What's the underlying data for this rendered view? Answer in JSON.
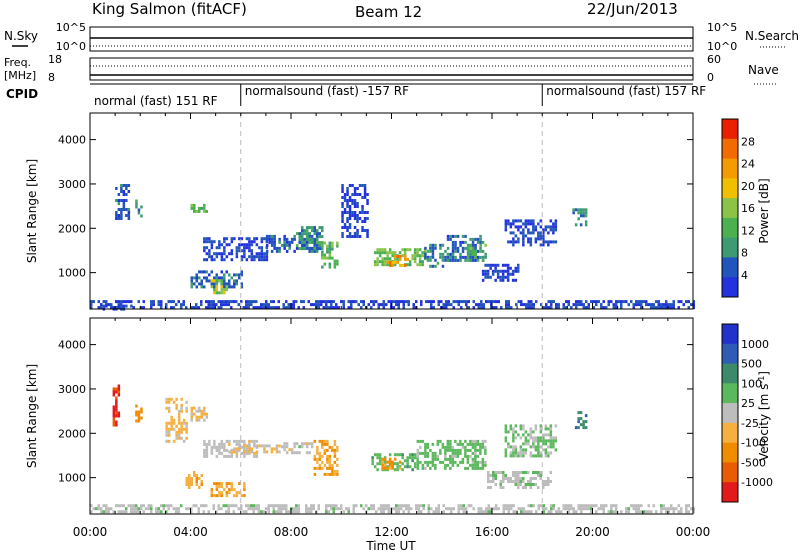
{
  "header": {
    "station": "King Salmon (fitACF)",
    "beam": "Beam 12",
    "date": "22/Jun/2013"
  },
  "noise_panel": {
    "left_label": "N.Sky",
    "right_label": "N.Search",
    "left_ticks": [
      "10^5",
      "10^0"
    ],
    "right_ticks": [
      "10^5",
      "10^0"
    ]
  },
  "freq_panel": {
    "left_label_1": "Freq.",
    "left_label_2": "[MHz]",
    "left_ticks": [
      "18",
      "8"
    ],
    "right_label": "Nave",
    "right_ticks": [
      "60",
      "0"
    ]
  },
  "cpid": {
    "label": "CPID",
    "modes": [
      {
        "name": "normal (fast) 151 RF",
        "start_hour": 0,
        "end_hour": 6
      },
      {
        "name": "normalsound (fast) -157 RF",
        "start_hour": 6,
        "end_hour": 18
      },
      {
        "name": "normalsound (fast) 157 RF",
        "start_hour": 18,
        "end_hour": 24
      }
    ]
  },
  "x_axis": {
    "label": "Time UT",
    "ticks": [
      "00:00",
      "04:00",
      "08:00",
      "12:00",
      "16:00",
      "20:00",
      "00:00"
    ]
  },
  "power_panel": {
    "ylabel": "Slant Range [km]",
    "yticks": [
      "4000",
      "3000",
      "2000",
      "1000"
    ],
    "colorbar_label": "Power [dB]",
    "colorbar_ticks": [
      "28",
      "24",
      "20",
      "16",
      "12",
      "8",
      "4"
    ]
  },
  "velocity_panel": {
    "ylabel": "Slant Range [km]",
    "yticks": [
      "4000",
      "3000",
      "2000",
      "1000"
    ],
    "colorbar_label": "Velocity [m s^-1]",
    "colorbar_ticks": [
      "1000",
      "500",
      "100",
      "25",
      "-25",
      "-100",
      "-500",
      "-1000"
    ]
  },
  "colors": {
    "power_scale": [
      "#2233dd",
      "#2255bb",
      "#3d9b73",
      "#4caf50",
      "#8bc34a",
      "#f0c000",
      "#f59a00",
      "#f26b00",
      "#e82000"
    ],
    "velocity_scale": [
      "#2233cc",
      "#2f5bb5",
      "#3d8a6b",
      "#5cb85c",
      "#bdbdbd",
      "#f5b041",
      "#f08c00",
      "#e85d04",
      "#e31a1c"
    ],
    "guide_line": "#bbbbbb"
  },
  "chart_data": [
    {
      "type": "heatmap",
      "title": "Power",
      "x_unit": "hours UT",
      "y_unit": "km",
      "xlim": [
        0,
        24
      ],
      "ylim": [
        180,
        4600
      ],
      "zlim": [
        2,
        30
      ],
      "colorbar_ticks": [
        4,
        8,
        12,
        16,
        20,
        24,
        28
      ],
      "regions": [
        {
          "x": [
            1.0,
            1.5
          ],
          "y": [
            2200,
            3000
          ],
          "z": 6
        },
        {
          "x": [
            1.8,
            2.0
          ],
          "y": [
            2300,
            2650
          ],
          "z": 10
        },
        {
          "x": [
            4.0,
            4.6
          ],
          "y": [
            2350,
            2550
          ],
          "z": 14
        },
        {
          "x": [
            4.5,
            7.0
          ],
          "y": [
            1300,
            1800
          ],
          "z": 5
        },
        {
          "x": [
            7.0,
            9.0
          ],
          "y": [
            1450,
            1850
          ],
          "z": 6
        },
        {
          "x": [
            8.2,
            9.2
          ],
          "y": [
            1550,
            2050
          ],
          "z": 10
        },
        {
          "x": [
            9.2,
            9.8
          ],
          "y": [
            1100,
            1700
          ],
          "z": 13
        },
        {
          "x": [
            4.0,
            6.0
          ],
          "y": [
            650,
            1050
          ],
          "z": 7
        },
        {
          "x": [
            4.8,
            5.4
          ],
          "y": [
            550,
            850
          ],
          "z": 16
        },
        {
          "x": [
            10.0,
            11.0
          ],
          "y": [
            1800,
            3000
          ],
          "z": 4
        },
        {
          "x": [
            11.3,
            13.3
          ],
          "y": [
            1150,
            1550
          ],
          "z": 14
        },
        {
          "x": [
            11.8,
            12.6
          ],
          "y": [
            1180,
            1400
          ],
          "z": 22
        },
        {
          "x": [
            13.3,
            14.2
          ],
          "y": [
            1150,
            1650
          ],
          "z": 9
        },
        {
          "x": [
            14.2,
            15.6
          ],
          "y": [
            1250,
            1850
          ],
          "z": 7
        },
        {
          "x": [
            15.0,
            15.7
          ],
          "y": [
            1300,
            1650
          ],
          "z": 12
        },
        {
          "x": [
            15.6,
            17.0
          ],
          "y": [
            850,
            1200
          ],
          "z": 4
        },
        {
          "x": [
            16.5,
            18.5
          ],
          "y": [
            1600,
            2200
          ],
          "z": 5
        },
        {
          "x": [
            19.2,
            19.7
          ],
          "y": [
            2100,
            2450
          ],
          "z": 9
        },
        {
          "x": [
            0.0,
            24.0
          ],
          "y": [
            200,
            380
          ],
          "z": 5
        },
        {
          "x": [
            0.5,
            1.7
          ],
          "y": [
            200,
            280
          ],
          "z": 5
        }
      ]
    },
    {
      "type": "heatmap",
      "title": "Velocity",
      "x_unit": "hours UT",
      "y_unit": "km",
      "xlim": [
        0,
        24
      ],
      "ylim": [
        180,
        4600
      ],
      "zlim": [
        -1250,
        1250
      ],
      "colorbar_ticks": [
        1000,
        500,
        100,
        25,
        -25,
        -100,
        -500,
        -1000
      ],
      "regions": [
        {
          "x": [
            0.9,
            1.1
          ],
          "y": [
            2200,
            3100
          ],
          "z": -1000
        },
        {
          "x": [
            1.8,
            2.0
          ],
          "y": [
            2250,
            2650
          ],
          "z": -500
        },
        {
          "x": [
            3.0,
            3.8
          ],
          "y": [
            1800,
            2800
          ],
          "z": -200
        },
        {
          "x": [
            4.0,
            4.6
          ],
          "y": [
            2300,
            2600
          ],
          "z": -150
        },
        {
          "x": [
            4.5,
            6.6
          ],
          "y": [
            1500,
            1850
          ],
          "z": -10
        },
        {
          "x": [
            5.5,
            7.5
          ],
          "y": [
            1550,
            1750
          ],
          "z": -150
        },
        {
          "x": [
            7.6,
            8.8
          ],
          "y": [
            1550,
            1800
          ],
          "z": 0
        },
        {
          "x": [
            8.9,
            9.8
          ],
          "y": [
            1050,
            1850
          ],
          "z": -400
        },
        {
          "x": [
            3.8,
            4.4
          ],
          "y": [
            800,
            1150
          ],
          "z": -300
        },
        {
          "x": [
            4.8,
            6.1
          ],
          "y": [
            600,
            900
          ],
          "z": -400
        },
        {
          "x": [
            11.2,
            13.0
          ],
          "y": [
            1150,
            1550
          ],
          "z": 300
        },
        {
          "x": [
            11.6,
            12.3
          ],
          "y": [
            1200,
            1450
          ],
          "z": -500
        },
        {
          "x": [
            13.0,
            15.7
          ],
          "y": [
            1200,
            1850
          ],
          "z": 250
        },
        {
          "x": [
            15.8,
            18.3
          ],
          "y": [
            750,
            1150
          ],
          "z": 50
        },
        {
          "x": [
            16.5,
            18.5
          ],
          "y": [
            1500,
            2200
          ],
          "z": 200
        },
        {
          "x": [
            19.3,
            19.7
          ],
          "y": [
            2100,
            2500
          ],
          "z": 600
        },
        {
          "x": [
            0.0,
            24.0
          ],
          "y": [
            200,
            400
          ],
          "z": 30
        }
      ]
    }
  ]
}
